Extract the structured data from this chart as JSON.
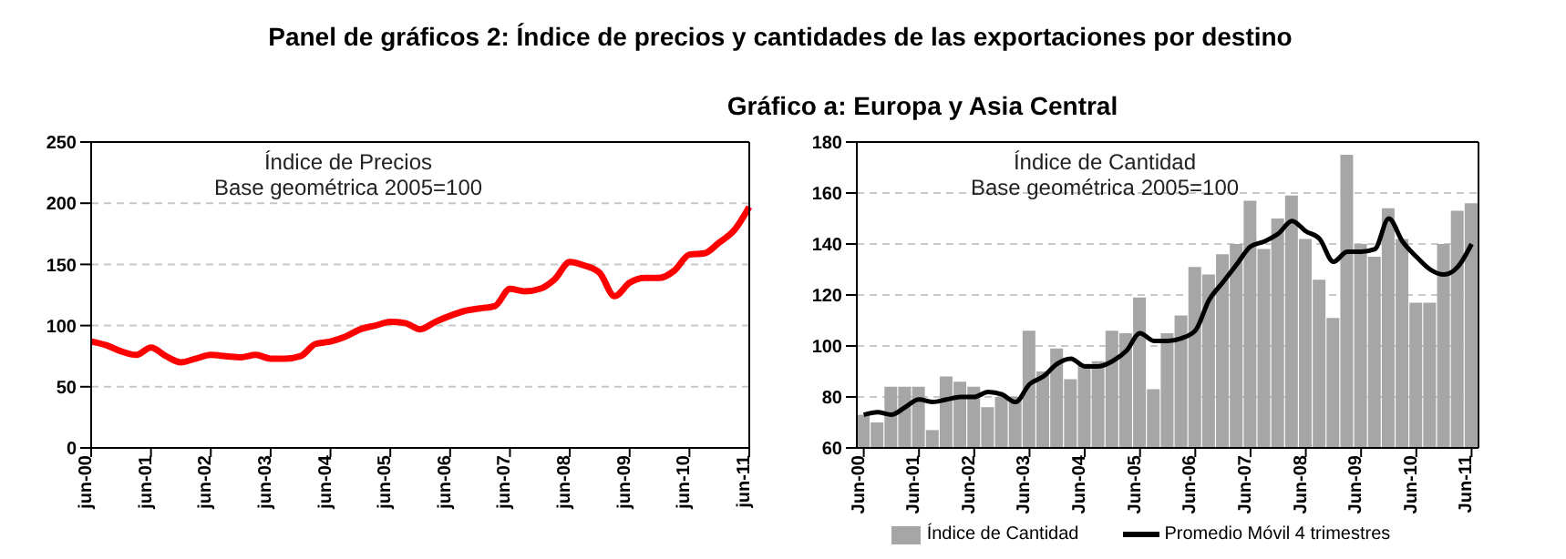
{
  "chart_data": [
    {
      "type": "line",
      "title": "Panel de gráficos 2: Índice de precios y cantidades de las exportaciones por destino",
      "categories": [
        "jun-00",
        null,
        null,
        null,
        "jun-01",
        null,
        null,
        null,
        "jun-02",
        null,
        null,
        null,
        "jun-03",
        null,
        null,
        null,
        "jun-04",
        null,
        null,
        null,
        "jun-05",
        null,
        null,
        null,
        "jun-06",
        null,
        null,
        null,
        "jun-07",
        null,
        null,
        null,
        "jun-08",
        null,
        null,
        null,
        "jun-09",
        null,
        null,
        null,
        "jun-10",
        null,
        null,
        null,
        "jun-11"
      ],
      "series": [
        {
          "color": "#ff0000",
          "values": [
            87,
            84,
            79,
            76,
            82,
            75,
            70,
            73,
            76,
            75,
            74,
            76,
            73,
            73,
            75,
            85,
            87,
            91,
            97,
            100,
            103,
            102,
            97,
            103,
            108,
            112,
            114,
            116,
            130,
            128,
            130,
            138,
            152,
            149,
            143,
            124,
            135,
            139,
            139,
            145,
            158,
            159,
            168,
            178,
            197
          ]
        }
      ],
      "ylim": [
        0,
        250
      ],
      "yticks": [
        0,
        50,
        100,
        150,
        200,
        250
      ],
      "grid": "y",
      "legend": false,
      "annotations": [
        "Índice de Precios",
        "Base geométrica 2005=100"
      ]
    },
    {
      "type": "bar",
      "title": "Gráfico a: Europa y Asia Central",
      "categories": [
        "Jun-00",
        null,
        null,
        null,
        "Jun-01",
        null,
        null,
        null,
        "Jun-02",
        null,
        null,
        null,
        "Jun-03",
        null,
        null,
        null,
        "Jun-04",
        null,
        null,
        null,
        "Jun-05",
        null,
        null,
        null,
        "Jun-06",
        null,
        null,
        null,
        "Jun-07",
        null,
        null,
        null,
        "Jun-08",
        null,
        null,
        null,
        "Jun-09",
        null,
        null,
        null,
        "Jun-10",
        null,
        null,
        null,
        "Jun-11"
      ],
      "series": [
        {
          "name": "Índice de Cantidad",
          "type": "bar",
          "color": "#a6a6a6",
          "values": [
            73,
            70,
            84,
            84,
            84,
            67,
            88,
            86,
            84,
            76,
            80,
            80,
            106,
            90,
            99,
            87,
            93,
            94,
            106,
            105,
            119,
            83,
            105,
            112,
            131,
            128,
            136,
            140,
            157,
            138,
            150,
            159,
            142,
            126,
            111,
            175,
            140,
            135,
            154,
            142,
            117,
            117,
            140,
            153,
            156
          ]
        },
        {
          "name": "Promedio Móvil 4 trimestres",
          "type": "line",
          "color": "#000000",
          "values": [
            73,
            74,
            73,
            76,
            79,
            78,
            79,
            80,
            80,
            82,
            81,
            78,
            85,
            88,
            93,
            95,
            92,
            92,
            94,
            98,
            105,
            102,
            102,
            103,
            106,
            118,
            125,
            132,
            139,
            141,
            144,
            149,
            145,
            142,
            133,
            137,
            137,
            138,
            150,
            141,
            135,
            130,
            128,
            131,
            140
          ]
        }
      ],
      "ylim": [
        60,
        180
      ],
      "yticks": [
        60,
        80,
        100,
        120,
        140,
        160,
        180
      ],
      "grid": "y",
      "legend": "bottom",
      "annotations": [
        "Índice de Cantidad",
        "Base geométrica 2005=100"
      ]
    }
  ]
}
